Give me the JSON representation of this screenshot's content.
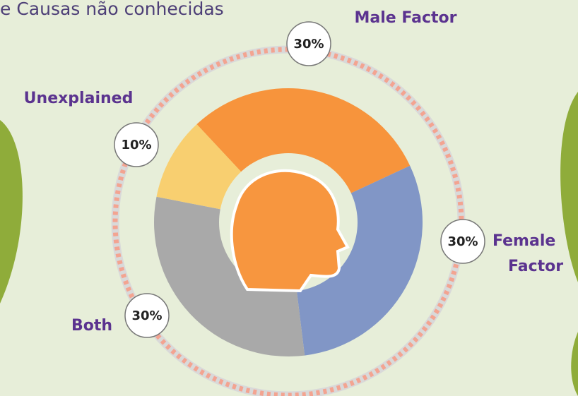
{
  "chart_data": {
    "type": "donut",
    "title": "e Causas não conhecidas",
    "categories": [
      "Male Factor",
      "Female Factor",
      "Both",
      "Unexplained"
    ],
    "values": [
      30,
      30,
      30,
      10
    ],
    "value_labels": [
      "30%",
      "30%",
      "30%",
      "10%"
    ],
    "colors": [
      "#f7943c",
      "#8196c6",
      "#a9a9a9",
      "#f8cf70"
    ]
  }
}
